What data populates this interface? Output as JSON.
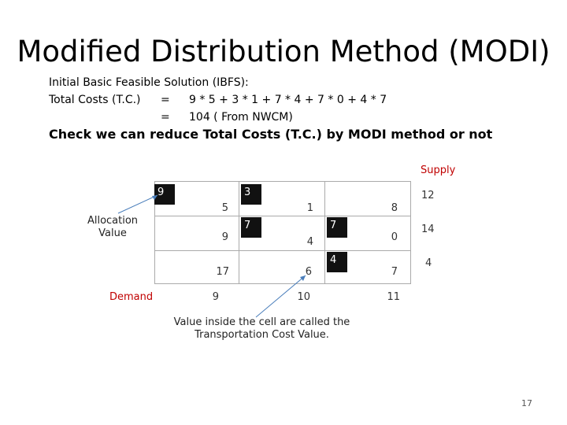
{
  "title": "Modified Distribution Method (MODI)",
  "ibfs": {
    "heading": "Initial Basic Feasible Solution (IBFS):",
    "rows": [
      {
        "label": "Total Costs (T.C.)",
        "op": "=",
        "expr": "9 * 5 + 3 * 1 + 7 * 4 + 7 * 0 + 4 * 7"
      },
      {
        "label": "",
        "op": "=",
        "expr": "104 ( From NWCM)"
      }
    ]
  },
  "check_line": "Check we can reduce Total Costs (T.C.) by MODI method or not",
  "table": {
    "supply_header": "Supply",
    "demand_header": "Demand",
    "rows": [
      {
        "costs": [
          "5",
          "1",
          "8"
        ],
        "allocations": [
          "9",
          "3",
          ""
        ],
        "supply": "12"
      },
      {
        "costs": [
          "9",
          "4",
          "0"
        ],
        "allocations": [
          "",
          "7",
          "7"
        ],
        "supply": "14"
      },
      {
        "costs": [
          "17",
          "6",
          "7"
        ],
        "allocations": [
          "",
          "",
          "4"
        ],
        "supply": "4"
      }
    ],
    "demand": [
      "9",
      "10",
      "11"
    ]
  },
  "annotations": {
    "allocation_line1": "Allocation",
    "allocation_line2": "Value",
    "cost_line1": "Value inside the cell are called the",
    "cost_line2": "Transportation Cost Value."
  },
  "page_number": "17",
  "colors": {
    "accent_red": "#c00000",
    "allocation_box": "#111111"
  }
}
